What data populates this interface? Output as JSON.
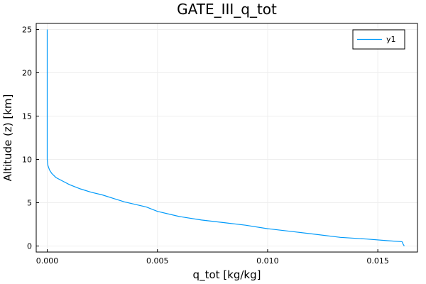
{
  "chart_data": {
    "type": "line",
    "title": "GATE_III_q_tot",
    "xlabel": "q_tot [kg/kg]",
    "ylabel": "Altitude (z) [km]",
    "xlim": [
      -0.0005,
      0.0168
    ],
    "ylim": [
      -0.7,
      25.7
    ],
    "xticks": [
      0.0,
      0.005,
      0.01,
      0.015
    ],
    "xtick_labels": [
      "0.000",
      "0.005",
      "0.010",
      "0.015"
    ],
    "yticks": [
      0,
      5,
      10,
      15,
      20,
      25
    ],
    "ytick_labels": [
      "0",
      "5",
      "10",
      "15",
      "20",
      "25"
    ],
    "grid": true,
    "legend": {
      "position": "top-right",
      "entries": [
        "y1"
      ]
    },
    "colors": {
      "series": "#009AFA",
      "grid": "#eeeeee",
      "axis": "#000000"
    },
    "series": [
      {
        "name": "y1",
        "x": [
          0.0162,
          0.01615,
          0.0161,
          0.0155,
          0.0145,
          0.0133,
          0.012,
          0.011,
          0.01,
          0.009,
          0.008,
          0.007,
          0.006,
          0.005,
          0.0045,
          0.004,
          0.0035,
          0.003,
          0.0025,
          0.002,
          0.0015,
          0.001,
          0.0007,
          0.0004,
          0.0002,
          0.0001,
          3e-05,
          0.0,
          0.0,
          0.0,
          0.0,
          0.0
        ],
        "y": [
          0.0,
          0.2,
          0.5,
          0.6,
          0.8,
          1.0,
          1.4,
          1.7,
          2.0,
          2.4,
          2.7,
          3.0,
          3.4,
          4.0,
          4.5,
          4.8,
          5.1,
          5.5,
          5.9,
          6.2,
          6.6,
          7.1,
          7.5,
          7.9,
          8.4,
          8.8,
          9.3,
          10.0,
          12.5,
          15.0,
          20.0,
          25.0
        ]
      }
    ]
  }
}
